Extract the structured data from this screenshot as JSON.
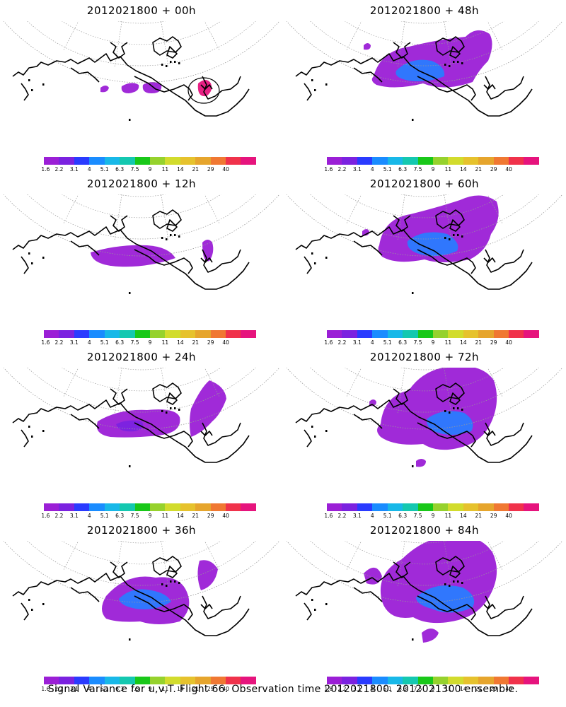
{
  "panels": [
    {
      "title": "2012021800 + 00h",
      "stage": 0
    },
    {
      "title": "2012021800 + 48h",
      "stage": 4
    },
    {
      "title": "2012021800 + 12h",
      "stage": 1
    },
    {
      "title": "2012021800 + 60h",
      "stage": 5
    },
    {
      "title": "2012021800 + 24h",
      "stage": 2
    },
    {
      "title": "2012021800 + 72h",
      "stage": 6
    },
    {
      "title": "2012021800 + 36h",
      "stage": 3
    },
    {
      "title": "2012021800 + 84h",
      "stage": 7
    }
  ],
  "colorbar": {
    "tick_labels": [
      "1.6",
      "2.2",
      "3.1",
      "4",
      "5.1",
      "6.3",
      "7.5",
      "9",
      "11",
      "14",
      "21",
      "29",
      "40"
    ],
    "colors": [
      "#9b1fd6",
      "#7b22e0",
      "#2a3bff",
      "#1a8cff",
      "#18b8e8",
      "#14c8b0",
      "#19c819",
      "#96d22d",
      "#d2dc2d",
      "#e6c22d",
      "#e6a52d",
      "#f07832",
      "#f0324b",
      "#e6147d"
    ]
  },
  "footer": "Signal Variance for u,v,T. Flight 66. Observation time 2012021800. 2012021300 ensemble.",
  "colors": {
    "low": "#9b1fd6",
    "mid": "#7b22e0",
    "high": "#2a7bff",
    "peak": "#e6147d",
    "coast": "#000000",
    "grid": "#9a9a9a"
  }
}
